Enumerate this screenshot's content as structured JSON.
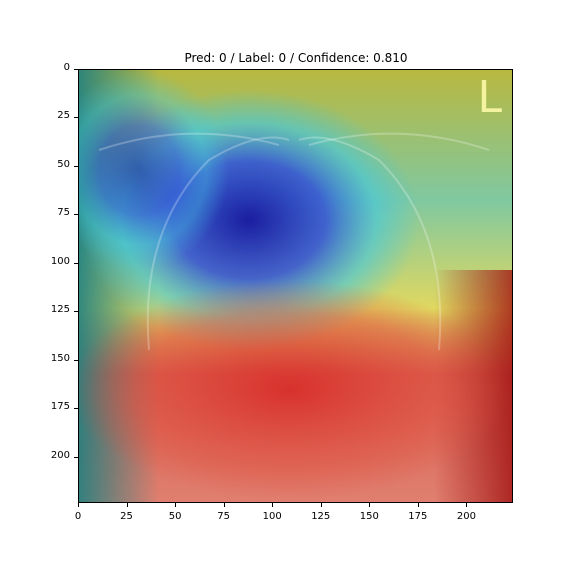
{
  "figure": {
    "title": "Pred: 0 / Label: 0 / Confidence: 0.810",
    "marker_letter": "L"
  },
  "axes": {
    "y_ticks": [
      "0",
      "25",
      "50",
      "75",
      "100",
      "125",
      "150",
      "175",
      "200"
    ],
    "x_ticks": [
      "0",
      "25",
      "50",
      "75",
      "100",
      "125",
      "150",
      "175",
      "200"
    ],
    "xlim": [
      0,
      224
    ],
    "ylim": [
      224,
      0
    ]
  },
  "colors": {
    "cool": "#1a1aa0",
    "mid": "#3cd0e0",
    "warm": "#e8e060",
    "hot": "#d02020"
  }
}
